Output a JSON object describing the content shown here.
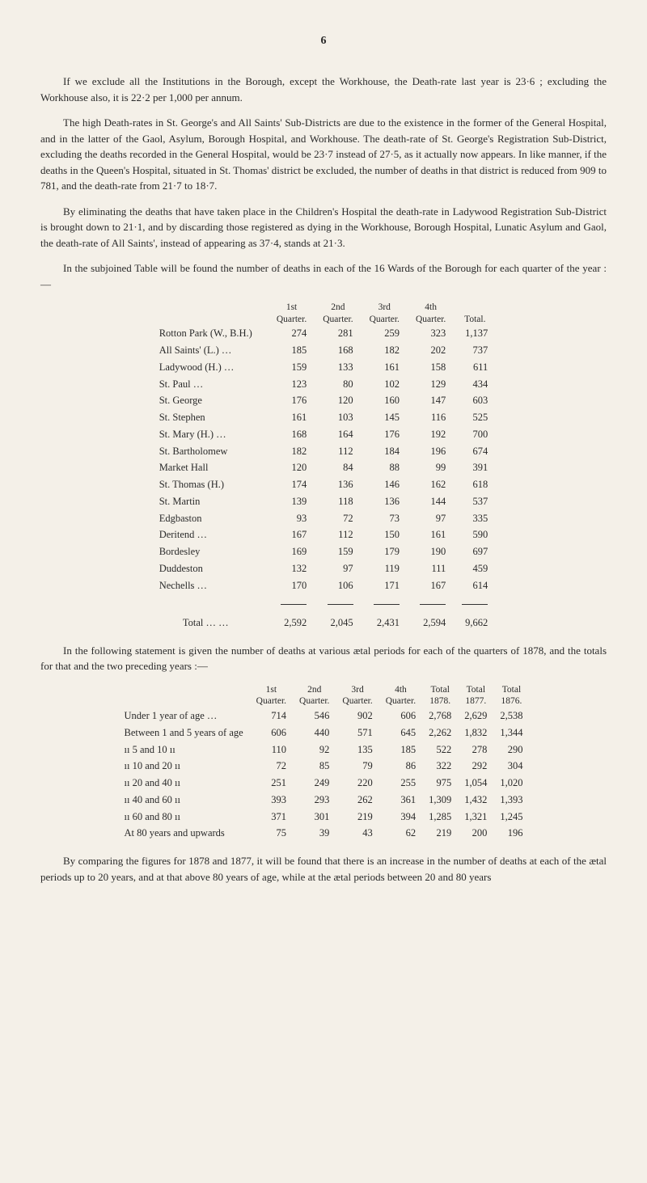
{
  "pageNumber": "6",
  "para1": "If we exclude all the Institutions in the Borough, except the Workhouse, the Death-rate last year is 23·6 ; excluding the Workhouse also, it is 22·2 per 1,000 per annum.",
  "para2": "The high Death-rates in St. George's and All Saints' Sub-Districts are due to the existence in the former of the General Hospital, and in the latter of the Gaol, Asylum, Borough Hospital, and Workhouse. The death-rate of St. George's Registration Sub-District, excluding the deaths recorded in the General Hospital, would be 23·7 instead of 27·5, as it actually now appears. In like manner, if the deaths in the Queen's Hospital, situated in St. Thomas' district be excluded, the number of deaths in that district is reduced from 909 to 781, and the death-rate from 21·7 to 18·7.",
  "para3": "By eliminating the deaths that have taken place in the Children's Hospital the death-rate in Ladywood Registration Sub-District is brought down to 21·1, and by discarding those registered as dying in the Workhouse, Borough Hospital, Lunatic Asylum and Gaol, the death-rate of All Saints', instead of appearing as 37·4, stands at 21·3.",
  "para4": "In the subjoined Table will be found the number of deaths in each of the 16 Wards of the Borough for each quarter of the year :—",
  "table1": {
    "headers": [
      [
        "",
        "1st",
        "2nd",
        "3rd",
        "4th",
        ""
      ],
      [
        "",
        "Quarter.",
        "Quarter.",
        "Quarter.",
        "Quarter.",
        "Total."
      ]
    ],
    "rows": [
      {
        "label": "Rotton Park (W., B.H.)",
        "dots": "…",
        "v": [
          "274",
          "281",
          "259",
          "323",
          "1,137"
        ]
      },
      {
        "label": "All Saints' (L.) …",
        "dots": "…",
        "v": [
          "185",
          "168",
          "182",
          "202",
          "737"
        ]
      },
      {
        "label": "Ladywood (H.) …",
        "dots": "…",
        "v": [
          "159",
          "133",
          "161",
          "158",
          "611"
        ]
      },
      {
        "label": "St. Paul …",
        "dots": "…",
        "v": [
          "123",
          "80",
          "102",
          "129",
          "434"
        ]
      },
      {
        "label": "St. George",
        "dots": "…",
        "v": [
          "176",
          "120",
          "160",
          "147",
          "603"
        ]
      },
      {
        "label": "St. Stephen",
        "dots": "…",
        "v": [
          "161",
          "103",
          "145",
          "116",
          "525"
        ]
      },
      {
        "label": "St. Mary (H.) …",
        "dots": "…",
        "v": [
          "168",
          "164",
          "176",
          "192",
          "700"
        ]
      },
      {
        "label": "St. Bartholomew",
        "dots": "…",
        "v": [
          "182",
          "112",
          "184",
          "196",
          "674"
        ]
      },
      {
        "label": "Market Hall",
        "dots": "…",
        "v": [
          "120",
          "84",
          "88",
          "99",
          "391"
        ]
      },
      {
        "label": "St. Thomas (H.)",
        "dots": "…",
        "v": [
          "174",
          "136",
          "146",
          "162",
          "618"
        ]
      },
      {
        "label": "St. Martin",
        "dots": "…",
        "v": [
          "139",
          "118",
          "136",
          "144",
          "537"
        ]
      },
      {
        "label": "Edgbaston",
        "dots": "…",
        "v": [
          "93",
          "72",
          "73",
          "97",
          "335"
        ]
      },
      {
        "label": "Deritend …",
        "dots": "…",
        "v": [
          "167",
          "112",
          "150",
          "161",
          "590"
        ]
      },
      {
        "label": "Bordesley",
        "dots": "…",
        "v": [
          "169",
          "159",
          "179",
          "190",
          "697"
        ]
      },
      {
        "label": "Duddeston",
        "dots": "…",
        "v": [
          "132",
          "97",
          "119",
          "111",
          "459"
        ]
      },
      {
        "label": "Nechells …",
        "dots": "…",
        "v": [
          "170",
          "106",
          "171",
          "167",
          "614"
        ]
      }
    ],
    "totalLabel": "Total",
    "totalV": [
      "2,592",
      "2,045",
      "2,431",
      "2,594",
      "9,662"
    ]
  },
  "para5": "In the following statement is given the number of deaths at various ætal periods for each of the quarters of 1878, and the totals for that and the two preceding years :—",
  "table2": {
    "headers": [
      [
        "",
        "1st",
        "2nd",
        "3rd",
        "4th",
        "Total",
        "Total",
        "Total"
      ],
      [
        "",
        "Quarter.",
        "Quarter.",
        "Quarter.",
        "Quarter.",
        "1878.",
        "1877.",
        "1876."
      ]
    ],
    "rows": [
      {
        "label": "Under 1 year of age   …",
        "v": [
          "714",
          "546",
          "902",
          "606",
          "2,768",
          "2,629",
          "2,538"
        ]
      },
      {
        "label": "Between 1 and 5 years of age",
        "v": [
          "606",
          "440",
          "571",
          "645",
          "2,262",
          "1,832",
          "1,344"
        ]
      },
      {
        "label": "ıı      5 and 10      ıı",
        "v": [
          "110",
          "92",
          "135",
          "185",
          "522",
          "278",
          "290"
        ]
      },
      {
        "label": "ıı    10 and 20      ıı",
        "v": [
          "72",
          "85",
          "79",
          "86",
          "322",
          "292",
          "304"
        ]
      },
      {
        "label": "ıı    20 and 40      ıı",
        "v": [
          "251",
          "249",
          "220",
          "255",
          "975",
          "1,054",
          "1,020"
        ]
      },
      {
        "label": "ıı    40 and 60      ıı",
        "v": [
          "393",
          "293",
          "262",
          "361",
          "1,309",
          "1,432",
          "1,393"
        ]
      },
      {
        "label": "ıı    60 and 80      ıı",
        "v": [
          "371",
          "301",
          "219",
          "394",
          "1,285",
          "1,321",
          "1,245"
        ]
      },
      {
        "label": "At 80 years and upwards",
        "v": [
          "75",
          "39",
          "43",
          "62",
          "219",
          "200",
          "196"
        ]
      }
    ]
  },
  "para6": "By comparing the figures for 1878 and 1877, it will be found that there is an increase in the number of deaths at each of the ætal periods up to 20 years, and at that above 80 years of age, while at the ætal periods between 20 and 80 years"
}
